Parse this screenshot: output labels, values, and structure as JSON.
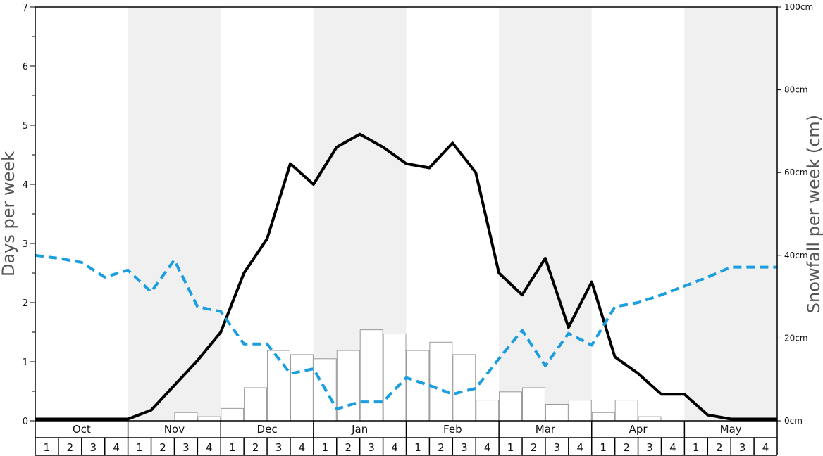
{
  "chart_data": {
    "type": "bar",
    "title": "",
    "ylabel": "Days per week",
    "y2label": "Snowfall per week (cm)",
    "ylim": [
      0,
      7
    ],
    "y2lim": [
      0,
      100
    ],
    "yticks": [
      "0",
      "1",
      "2",
      "3",
      "4",
      "5",
      "6",
      "7"
    ],
    "y2ticks": [
      "0cm",
      "20cm",
      "40cm",
      "60cm",
      "80cm",
      "100cm"
    ],
    "grid": false,
    "months": [
      "Oct",
      "Nov",
      "Dec",
      "Jan",
      "Feb",
      "Mar",
      "Apr",
      "May"
    ],
    "week_labels": [
      "1",
      "2",
      "3",
      "4"
    ],
    "shaded_months": [
      "Nov",
      "Jan",
      "Mar",
      "May"
    ],
    "colors": {
      "bars": "#ffffff",
      "bar_border": "#999999",
      "black_line": "#000000",
      "blue_line": "#1a9ee0",
      "shade": "#f0f0f0"
    },
    "series": [
      {
        "kind": "bars",
        "axis": "right",
        "unit": "cm",
        "values": [
          0,
          0,
          0,
          0,
          0,
          0,
          2,
          1,
          3,
          8,
          17,
          16,
          15,
          17,
          22,
          21,
          17,
          19,
          16,
          5,
          7,
          8,
          4,
          5,
          2,
          5,
          1,
          0,
          0,
          0,
          0,
          0
        ]
      },
      {
        "kind": "line",
        "style": "solid",
        "axis": "left",
        "values": [
          0.03,
          0.03,
          0.03,
          0.03,
          0.03,
          0.18,
          0.6,
          1.02,
          1.5,
          2.5,
          3.08,
          4.35,
          4.0,
          4.63,
          4.85,
          4.63,
          4.35,
          4.28,
          4.7,
          4.2,
          2.5,
          2.13,
          2.75,
          1.58,
          2.35,
          1.08,
          0.8,
          0.45,
          0.45,
          0.1,
          0.03,
          0.03,
          0.03
        ]
      },
      {
        "kind": "line",
        "style": "dashed",
        "axis": "left",
        "values": [
          2.8,
          2.75,
          2.68,
          2.43,
          2.55,
          2.18,
          2.72,
          1.93,
          1.85,
          1.3,
          1.3,
          0.8,
          0.88,
          0.2,
          0.32,
          0.32,
          0.73,
          0.6,
          0.45,
          0.55,
          1.05,
          1.53,
          0.93,
          1.48,
          1.28,
          1.93,
          2.0,
          2.13,
          2.28,
          2.43,
          2.6,
          2.6,
          2.6
        ]
      }
    ]
  }
}
